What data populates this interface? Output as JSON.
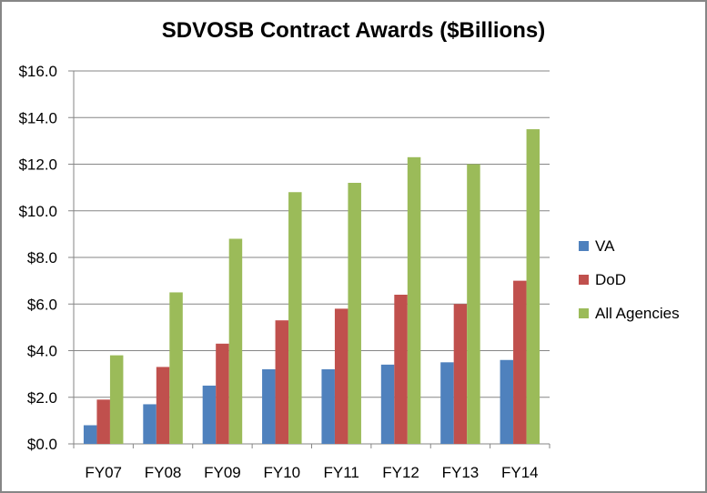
{
  "chart_data": {
    "type": "bar",
    "title": "SDVOSB Contract Awards ($Billions)",
    "xlabel": "",
    "ylabel": "",
    "ylim": [
      0,
      16
    ],
    "yticks": [
      0,
      2,
      4,
      6,
      8,
      10,
      12,
      14,
      16
    ],
    "ytick_labels": [
      "$0.0",
      "$2.0",
      "$4.0",
      "$6.0",
      "$8.0",
      "$10.0",
      "$12.0",
      "$14.0",
      "$16.0"
    ],
    "grid": true,
    "legend_position": "right",
    "categories": [
      "FY07",
      "FY08",
      "FY09",
      "FY10",
      "FY11",
      "FY12",
      "FY13",
      "FY14"
    ],
    "series": [
      {
        "name": "VA",
        "color": "#4F81BD",
        "values": [
          0.8,
          1.7,
          2.5,
          3.2,
          3.2,
          3.4,
          3.5,
          3.6
        ]
      },
      {
        "name": "DoD",
        "color": "#C0504D",
        "values": [
          1.9,
          3.3,
          4.3,
          5.3,
          5.8,
          6.4,
          6.0,
          7.0
        ]
      },
      {
        "name": "All Agencies",
        "color": "#9BBB59",
        "values": [
          3.8,
          6.5,
          8.8,
          10.8,
          11.2,
          12.3,
          12.0,
          13.5
        ]
      }
    ]
  }
}
